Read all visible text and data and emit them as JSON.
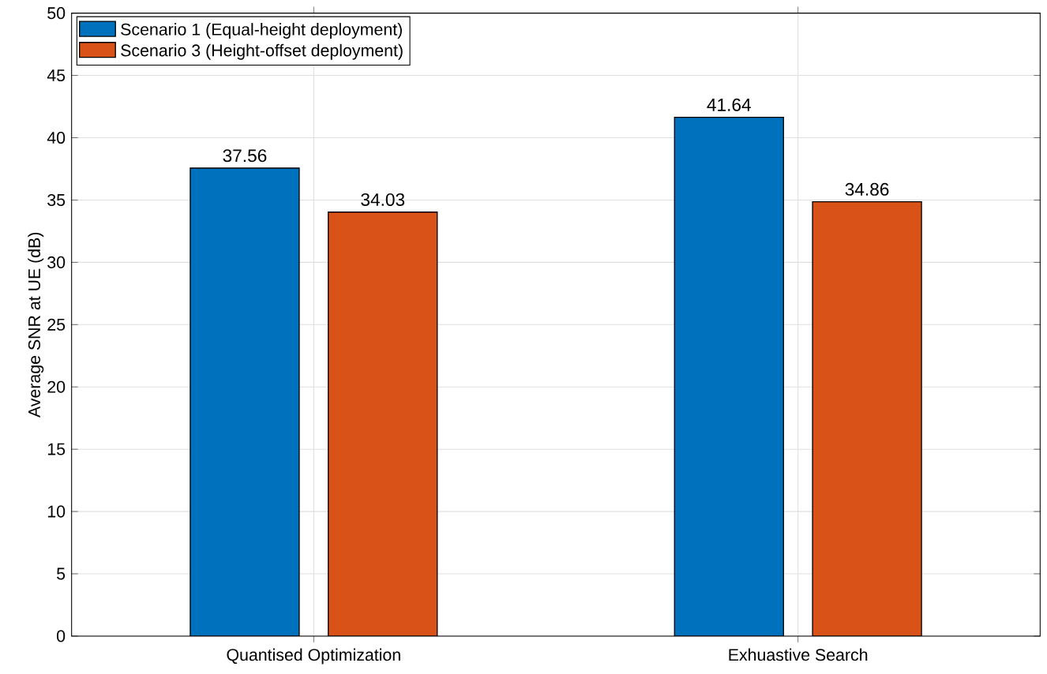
{
  "chart_data": {
    "type": "bar",
    "ylabel": "Average SNR at UE (dB)",
    "categories": [
      "Quantised Optimization",
      "Exhuastive Search"
    ],
    "series": [
      {
        "name": "Scenario 1 (Equal-height deployment)",
        "color": "#0072bd",
        "values": [
          37.56,
          41.64
        ]
      },
      {
        "name": "Scenario 3 (Height-offset deployment)",
        "color": "#d95319",
        "values": [
          34.03,
          34.86
        ]
      }
    ],
    "ylim": [
      0,
      50
    ],
    "yticks": [
      0,
      5,
      10,
      15,
      20,
      25,
      30,
      35,
      40,
      45,
      50
    ],
    "grid": true,
    "legend": "top left",
    "data_labels": true
  }
}
